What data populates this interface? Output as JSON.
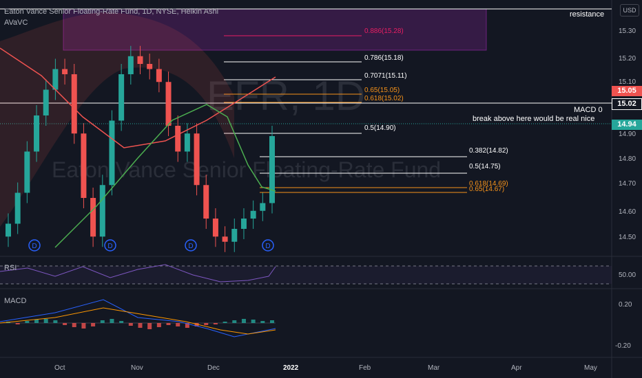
{
  "header": {
    "title": "Eaton Vance Senior Floating-Rate Fund, 1D, NYSE, Heikin Ashi",
    "indicator": "AVaVC"
  },
  "currency_button": "USD",
  "watermark": {
    "symbol": "EFR, 1D",
    "name": "Eaton Vance Senior Floating-Rate Fund"
  },
  "annotations": {
    "resistance": "resistance",
    "macd_zero": "MACD 0",
    "break_note": "break above here would be real nice"
  },
  "price_boxes": {
    "resistance_price": "15.05",
    "macd_price": "15.02",
    "last_price": "14.94"
  },
  "fib_upper": [
    {
      "label": "0.886(15.28)",
      "color": "#e91e63"
    },
    {
      "label": "0.786(15.18)",
      "color": "#ffffff"
    },
    {
      "label": "0.7071(15.11)",
      "color": "#ffffff"
    },
    {
      "label": "0.65(15.05)",
      "color": "#f7931a"
    },
    {
      "label": "0.618(15.02)",
      "color": "#f7931a"
    },
    {
      "label": "0.5(14.90)",
      "color": "#ffffff"
    }
  ],
  "fib_lower": [
    {
      "label": "0.382(14.82)",
      "color": "#ffffff"
    },
    {
      "label": "0.5(14.75)",
      "color": "#ffffff"
    },
    {
      "label": "0.618(14.69)",
      "color": "#f7931a"
    },
    {
      "label": "0.65(14.67)",
      "color": "#f7931a"
    }
  ],
  "price_axis": [
    "15.30",
    "15.20",
    "15.10",
    "14.90",
    "14.80",
    "14.70",
    "14.60",
    "14.50"
  ],
  "rsi": {
    "label": "RSI",
    "tick": "50.00"
  },
  "macd": {
    "label": "MACD",
    "ticks": [
      "0.20",
      "-0.20"
    ]
  },
  "time_axis": [
    "Oct",
    "Nov",
    "Dec",
    "2022",
    "Feb",
    "Mar",
    "Apr",
    "May"
  ],
  "dividend_marker": "D",
  "colors": {
    "up": "#26a69a",
    "down": "#ef5350",
    "background": "#131722",
    "zone": "#9c27b0"
  },
  "chart_data": {
    "type": "candlestick",
    "series": [
      {
        "name": "candles",
        "open": [
          14.55,
          14.6,
          14.72,
          14.88,
          15.02,
          15.12,
          15.2,
          15.18,
          14.95,
          14.7,
          14.55,
          14.75,
          15.0,
          15.18,
          15.25,
          15.22,
          15.2,
          15.15,
          14.98,
          14.88,
          14.95,
          14.75,
          14.62,
          14.55,
          14.53,
          14.58,
          14.62,
          14.65,
          14.68
        ],
        "close": [
          14.6,
          14.72,
          14.88,
          15.02,
          15.12,
          15.2,
          15.18,
          14.95,
          14.7,
          14.55,
          14.75,
          15.0,
          15.18,
          15.25,
          15.22,
          15.2,
          15.15,
          14.98,
          14.88,
          14.95,
          14.75,
          14.62,
          14.55,
          14.53,
          14.58,
          14.62,
          14.65,
          14.68,
          14.94
        ]
      }
    ]
  }
}
